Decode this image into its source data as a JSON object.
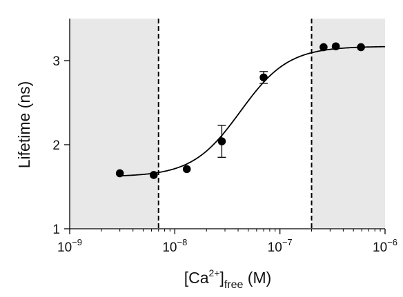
{
  "chart_data": {
    "type": "scatter",
    "title": "",
    "xscale": "log",
    "xlim": [
      1e-09,
      1e-06
    ],
    "ylim": [
      1,
      3.5
    ],
    "grid": false,
    "legend": "none",
    "xlabel": {
      "main": "[Ca",
      "superscript": "2+",
      "close": "]",
      "subscript": "free",
      "unit": " (M)"
    },
    "ylabel": "Lifetime (ns)",
    "x_ticks": [
      {
        "value": 1e-09,
        "base": "10",
        "exp": "−9"
      },
      {
        "value": 1e-08,
        "base": "10",
        "exp": "−8"
      },
      {
        "value": 1e-07,
        "base": "10",
        "exp": "−7"
      },
      {
        "value": 1e-06,
        "base": "10",
        "exp": "−6"
      }
    ],
    "y_ticks": [
      {
        "value": 1,
        "label": "1"
      },
      {
        "value": 2,
        "label": "2"
      },
      {
        "value": 3,
        "label": "3"
      }
    ],
    "points": [
      {
        "x": 3e-09,
        "y": 1.66
      },
      {
        "x": 6.3e-09,
        "y": 1.64
      },
      {
        "x": 1.3e-08,
        "y": 1.71
      },
      {
        "x": 2.8e-08,
        "y": 2.04,
        "err": 0.19
      },
      {
        "x": 7e-08,
        "y": 2.8,
        "err": 0.07
      },
      {
        "x": 2.6e-07,
        "y": 3.16
      },
      {
        "x": 3.4e-07,
        "y": 3.17
      },
      {
        "x": 5.9e-07,
        "y": 3.16
      }
    ],
    "fit": {
      "model": "hill",
      "bottom": 1.62,
      "top": 3.17,
      "ec50": 4.2e-08,
      "hill": 1.9,
      "x_range": [
        3e-09,
        1e-06
      ]
    },
    "shaded_regions": [
      [
        1e-09,
        7e-09
      ],
      [
        2e-07,
        1e-06
      ]
    ],
    "dashed_lines": [
      7e-09,
      2e-07
    ],
    "colors": {
      "marker": "#000000",
      "line": "#000000",
      "shade": "#e8e8e8",
      "axis": "#000000"
    }
  }
}
